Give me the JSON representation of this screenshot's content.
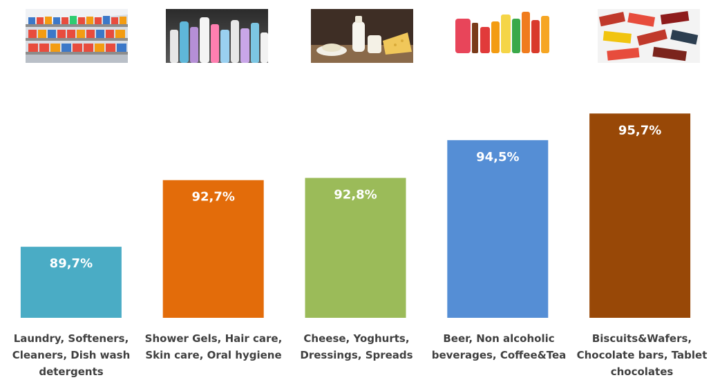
{
  "chart_data": {
    "type": "bar",
    "categories": [
      "Laundry, Softeners, Cleaners, Dish wash detergents",
      "Shower Gels, Hair care, Skin care, Oral hygiene",
      "Cheese, Yoghurts, Dressings, Spreads",
      "Beer, Non alcoholic beverages, Coffee&Tea",
      "Biscuits&Wafers, Chocolate bars, Tablet chocolates"
    ],
    "category_label_lines": [
      "Laundry, Softeners,\nCleaners, Dish wash\ndetergents",
      "Shower Gels, Hair care,\nSkin care, Oral hygiene",
      "Cheese, Yoghurts,\nDressings, Spreads",
      "Beer, Non alcoholic\nbeverages, Coffee&Tea",
      "Biscuits&Wafers,\nChocolate bars, Tablet\nchocolates"
    ],
    "values": [
      89.7,
      92.7,
      92.8,
      94.5,
      95.7
    ],
    "data_labels": [
      "89,7%",
      "92,7%",
      "92,8%",
      "94,5%",
      "95,7%"
    ],
    "bar_colors": [
      "#4aacc5",
      "#e36c0a",
      "#9bbb59",
      "#558ed5",
      "#984807"
    ],
    "ylim": [
      86.5,
      97.7
    ],
    "grid": false,
    "legend": "none",
    "title": "",
    "xlabel": "",
    "ylabel": ""
  },
  "thumbnails": [
    {
      "icon": "supermarket-detergent-shelf-image"
    },
    {
      "icon": "cosmetic-bottles-image"
    },
    {
      "icon": "dairy-products-image"
    },
    {
      "icon": "beverage-bottles-image"
    },
    {
      "icon": "chocolate-bars-image"
    }
  ]
}
